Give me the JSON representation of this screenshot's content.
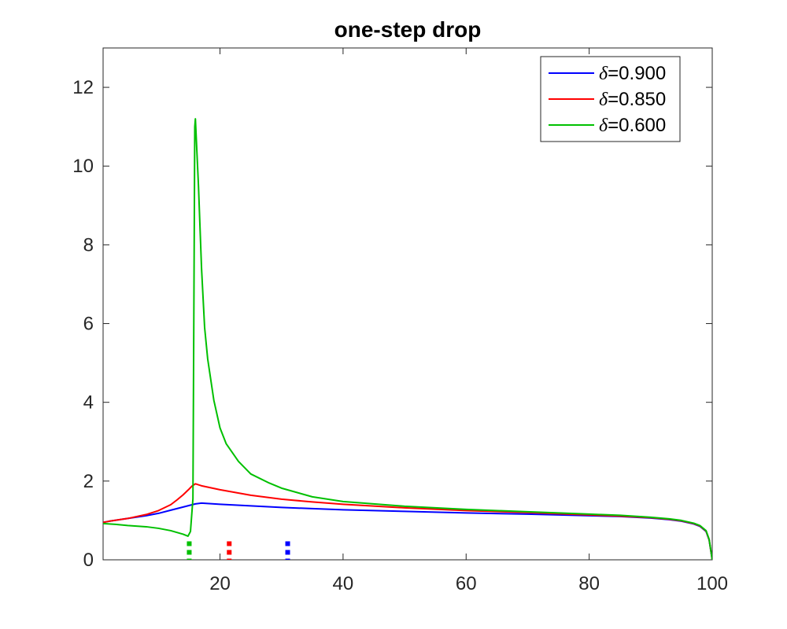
{
  "chart_data": {
    "type": "line",
    "title": "one-step drop",
    "xlabel": "",
    "ylabel": "",
    "xlim": [
      1,
      100
    ],
    "ylim": [
      0,
      13
    ],
    "xticks": [
      20,
      40,
      60,
      80,
      100
    ],
    "yticks": [
      0,
      2,
      4,
      6,
      8,
      10,
      12
    ],
    "grid": false,
    "legend_position": "top-right",
    "series": [
      {
        "name": "δ=0.900",
        "legend_symbol": "δ",
        "legend_value": "=0.900",
        "color": "#0000ff",
        "x": [
          1,
          2,
          5,
          8,
          10,
          12,
          14,
          15,
          16,
          17,
          18,
          20,
          25,
          30,
          35,
          40,
          50,
          60,
          70,
          80,
          85,
          90,
          93,
          95,
          97,
          98,
          99,
          99.5,
          100
        ],
        "y": [
          0.95,
          0.98,
          1.05,
          1.12,
          1.18,
          1.26,
          1.34,
          1.38,
          1.42,
          1.44,
          1.43,
          1.41,
          1.37,
          1.33,
          1.3,
          1.27,
          1.23,
          1.19,
          1.16,
          1.12,
          1.1,
          1.06,
          1.02,
          0.98,
          0.91,
          0.85,
          0.72,
          0.5,
          0.0
        ]
      },
      {
        "name": "δ=0.850",
        "legend_symbol": "δ",
        "legend_value": "=0.850",
        "color": "#ff0000",
        "x": [
          1,
          2,
          5,
          8,
          10,
          12,
          13,
          14,
          15,
          15.5,
          16,
          17,
          20,
          25,
          30,
          35,
          40,
          50,
          60,
          70,
          80,
          85,
          90,
          93,
          95,
          97,
          98,
          99,
          99.5,
          100
        ],
        "y": [
          0.95,
          0.98,
          1.05,
          1.15,
          1.25,
          1.4,
          1.52,
          1.65,
          1.8,
          1.88,
          1.93,
          1.88,
          1.78,
          1.64,
          1.54,
          1.47,
          1.41,
          1.32,
          1.25,
          1.2,
          1.14,
          1.11,
          1.07,
          1.03,
          0.99,
          0.92,
          0.86,
          0.73,
          0.51,
          0.0
        ]
      },
      {
        "name": "δ=0.600",
        "legend_symbol": "δ",
        "legend_value": "=0.600",
        "color": "#00c000",
        "x": [
          1,
          3,
          5,
          8,
          10,
          12,
          14,
          14.8,
          15.2,
          15.6,
          15.9,
          16,
          16.5,
          17,
          17.5,
          18,
          19,
          20,
          21,
          23,
          25,
          28,
          30,
          35,
          40,
          50,
          60,
          70,
          80,
          85,
          90,
          93,
          95,
          97,
          98,
          99,
          99.5,
          100
        ],
        "y": [
          0.92,
          0.9,
          0.87,
          0.84,
          0.8,
          0.74,
          0.65,
          0.6,
          0.72,
          1.55,
          11.0,
          11.2,
          9.5,
          7.4,
          5.9,
          5.1,
          4.05,
          3.35,
          2.95,
          2.5,
          2.18,
          1.95,
          1.82,
          1.6,
          1.48,
          1.36,
          1.28,
          1.22,
          1.16,
          1.13,
          1.08,
          1.04,
          1.0,
          0.93,
          0.87,
          0.74,
          0.52,
          0.0
        ]
      }
    ],
    "markers": [
      {
        "series": "δ=0.600",
        "x": 15,
        "color": "#00c000"
      },
      {
        "series": "δ=0.850",
        "x": 21.5,
        "color": "#ff0000"
      },
      {
        "series": "δ=0.900",
        "x": 31,
        "color": "#0000ff"
      }
    ]
  }
}
